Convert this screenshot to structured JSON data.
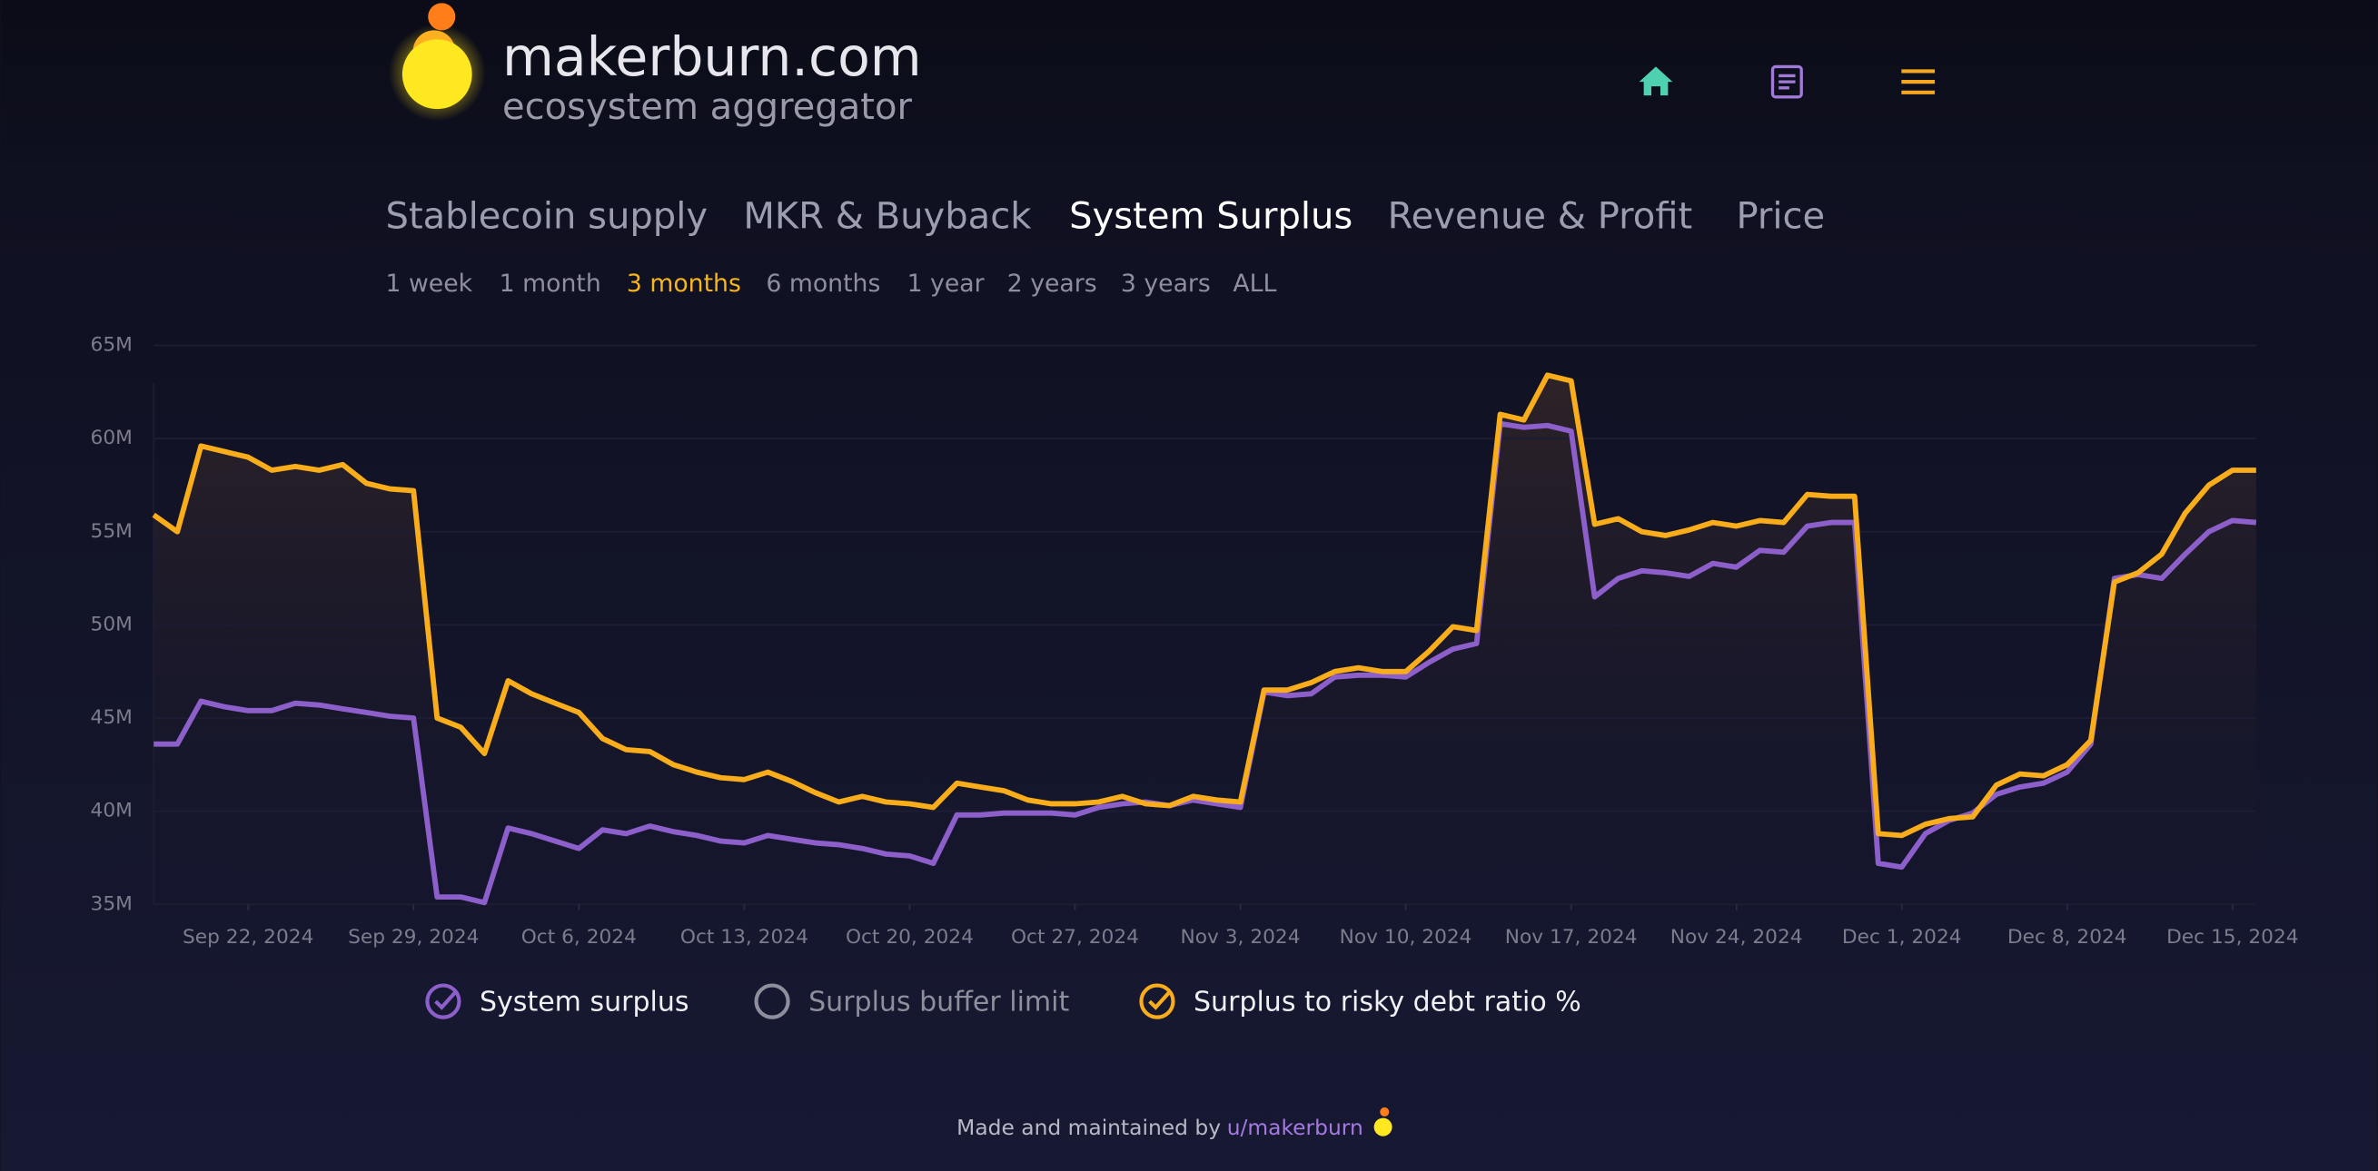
{
  "header": {
    "site": "makerburn.com",
    "tagline": "ecosystem aggregator"
  },
  "tabs": [
    "Stablecoin supply",
    "MKR & Buyback",
    "System Surplus",
    "Revenue & Profit",
    "Price"
  ],
  "active_tab": 2,
  "timeframes": [
    "1 week",
    "1 month",
    "3 months",
    "6 months",
    "1 year",
    "2 years",
    "3 years",
    "ALL"
  ],
  "active_timeframe": 2,
  "chart": {
    "type": "line",
    "x": [
      "2024-09-18",
      "2024-09-19",
      "2024-09-20",
      "2024-09-21",
      "2024-09-22",
      "2024-09-23",
      "2024-09-24",
      "2024-09-25",
      "2024-09-26",
      "2024-09-27",
      "2024-09-28",
      "2024-09-29",
      "2024-09-30",
      "2024-10-01",
      "2024-10-02",
      "2024-10-03",
      "2024-10-04",
      "2024-10-05",
      "2024-10-06",
      "2024-10-07",
      "2024-10-08",
      "2024-10-09",
      "2024-10-10",
      "2024-10-11",
      "2024-10-12",
      "2024-10-13",
      "2024-10-14",
      "2024-10-15",
      "2024-10-16",
      "2024-10-17",
      "2024-10-18",
      "2024-10-19",
      "2024-10-20",
      "2024-10-21",
      "2024-10-22",
      "2024-10-23",
      "2024-10-24",
      "2024-10-25",
      "2024-10-26",
      "2024-10-27",
      "2024-10-28",
      "2024-10-29",
      "2024-10-30",
      "2024-10-31",
      "2024-11-01",
      "2024-11-02",
      "2024-11-03",
      "2024-11-04",
      "2024-11-05",
      "2024-11-06",
      "2024-11-07",
      "2024-11-08",
      "2024-11-09",
      "2024-11-10",
      "2024-11-11",
      "2024-11-12",
      "2024-11-13",
      "2024-11-14",
      "2024-11-15",
      "2024-11-16",
      "2024-11-17",
      "2024-11-18",
      "2024-11-19",
      "2024-11-20",
      "2024-11-21",
      "2024-11-22",
      "2024-11-23",
      "2024-11-24",
      "2024-11-25",
      "2024-11-26",
      "2024-11-27",
      "2024-11-28",
      "2024-11-29",
      "2024-11-30",
      "2024-12-01",
      "2024-12-02",
      "2024-12-03",
      "2024-12-04",
      "2024-12-05",
      "2024-12-06",
      "2024-12-07",
      "2024-12-08",
      "2024-12-09",
      "2024-12-10",
      "2024-12-11",
      "2024-12-12",
      "2024-12-13",
      "2024-12-14",
      "2024-12-15",
      "2024-12-16"
    ],
    "series": [
      {
        "name": "System surplus",
        "color": "#8d5fcb",
        "values": [
          43600000,
          43600000,
          45900000,
          45600000,
          45400000,
          45400000,
          45800000,
          45700000,
          45500000,
          45300000,
          45100000,
          45000000,
          35400000,
          35400000,
          35100000,
          39100000,
          38800000,
          38400000,
          38000000,
          39000000,
          38800000,
          39200000,
          38900000,
          38700000,
          38400000,
          38300000,
          38700000,
          38500000,
          38300000,
          38200000,
          38000000,
          37700000,
          37600000,
          37200000,
          39800000,
          39800000,
          39900000,
          39900000,
          39900000,
          39800000,
          40200000,
          40400000,
          40500000,
          40300000,
          40600000,
          40400000,
          40200000,
          46400000,
          46200000,
          46300000,
          47200000,
          47300000,
          47300000,
          47200000,
          48000000,
          48700000,
          49000000,
          60800000,
          60600000,
          60700000,
          60400000,
          51500000,
          52500000,
          52900000,
          52800000,
          52600000,
          53300000,
          53100000,
          54000000,
          53900000,
          55300000,
          55500000,
          55500000,
          37200000,
          37000000,
          38800000,
          39500000,
          39900000,
          40900000,
          41300000,
          41500000,
          42100000,
          43600000,
          52500000,
          52700000,
          52500000,
          53800000,
          55000000,
          55600000,
          55500000
        ]
      },
      {
        "name": "Surplus to risky debt ratio %",
        "color": "#f9ad1b",
        "values": [
          55900000,
          55000000,
          59600000,
          59300000,
          59000000,
          58300000,
          58500000,
          58300000,
          58600000,
          57600000,
          57300000,
          57200000,
          45000000,
          44500000,
          43100000,
          47000000,
          46300000,
          45800000,
          45300000,
          43900000,
          43300000,
          43200000,
          42500000,
          42100000,
          41800000,
          41700000,
          42100000,
          41600000,
          41000000,
          40500000,
          40800000,
          40500000,
          40400000,
          40200000,
          41500000,
          41300000,
          41100000,
          40600000,
          40400000,
          40400000,
          40500000,
          40800000,
          40400000,
          40300000,
          40800000,
          40600000,
          40500000,
          46500000,
          46500000,
          46900000,
          47500000,
          47700000,
          47500000,
          47500000,
          48600000,
          49900000,
          49700000,
          61300000,
          61000000,
          63400000,
          63100000,
          55400000,
          55700000,
          55000000,
          54800000,
          55100000,
          55500000,
          55300000,
          55600000,
          55500000,
          57000000,
          56900000,
          56900000,
          38800000,
          38700000,
          39300000,
          39600000,
          39700000,
          41400000,
          42000000,
          41900000,
          42500000,
          43800000,
          52300000,
          52800000,
          53800000,
          56000000,
          57500000,
          58300000,
          58300000
        ]
      }
    ],
    "inactive_series": [
      {
        "name": "Surplus buffer limit",
        "color": "#8e8e9c"
      }
    ],
    "xlim": [
      "2024-09-18",
      "2024-12-16"
    ],
    "xticks": [
      {
        "value": "2024-09-22",
        "label": "Sep 22, 2024"
      },
      {
        "value": "2024-09-29",
        "label": "Sep 29, 2024"
      },
      {
        "value": "2024-10-06",
        "label": "Oct 6, 2024"
      },
      {
        "value": "2024-10-13",
        "label": "Oct 13, 2024"
      },
      {
        "value": "2024-10-20",
        "label": "Oct 20, 2024"
      },
      {
        "value": "2024-10-27",
        "label": "Oct 27, 2024"
      },
      {
        "value": "2024-11-03",
        "label": "Nov 3, 2024"
      },
      {
        "value": "2024-11-10",
        "label": "Nov 10, 2024"
      },
      {
        "value": "2024-11-17",
        "label": "Nov 17, 2024"
      },
      {
        "value": "2024-11-24",
        "label": "Nov 24, 2024"
      },
      {
        "value": "2024-12-01",
        "label": "Dec 1, 2024"
      },
      {
        "value": "2024-12-08",
        "label": "Dec 8, 2024"
      },
      {
        "value": "2024-12-15",
        "label": "Dec 15, 2024"
      }
    ],
    "ylim": [
      35000000,
      65000000
    ],
    "yticks": [
      {
        "value": 35000000,
        "label": "35M"
      },
      {
        "value": 40000000,
        "label": "40M"
      },
      {
        "value": 45000000,
        "label": "45M"
      },
      {
        "value": 50000000,
        "label": "50M"
      },
      {
        "value": 55000000,
        "label": "55M"
      },
      {
        "value": 60000000,
        "label": "60M"
      },
      {
        "value": 65000000,
        "label": "65M"
      }
    ],
    "grid": true
  },
  "footer": {
    "text": "Made and maintained by",
    "link": "u/makerburn"
  }
}
